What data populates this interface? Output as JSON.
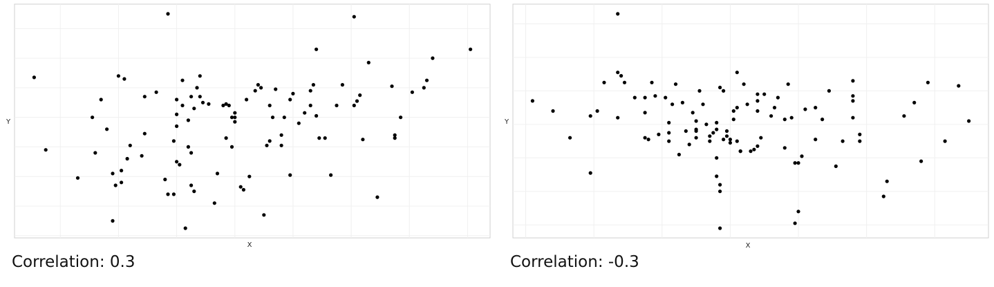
{
  "chart_data": [
    {
      "type": "scatter",
      "xlabel": "X",
      "ylabel": "Y",
      "caption": "Correlation: 0.3",
      "grid": true,
      "points": [
        [
          -2.45,
          1.35
        ],
        [
          -2.25,
          -1.1
        ],
        [
          -1.7,
          -2.05
        ],
        [
          -1.45,
          0.0
        ],
        [
          -1.4,
          -1.2
        ],
        [
          -1.3,
          0.6
        ],
        [
          -1.2,
          -0.4
        ],
        [
          -1.1,
          -3.5
        ],
        [
          -1.1,
          -1.9
        ],
        [
          -1.0,
          1.4
        ],
        [
          -1.05,
          -2.3
        ],
        [
          -0.95,
          -2.2
        ],
        [
          -0.95,
          -1.8
        ],
        [
          -0.9,
          1.3
        ],
        [
          -0.85,
          -1.4
        ],
        [
          -0.8,
          -0.95
        ],
        [
          -0.6,
          -1.3
        ],
        [
          -0.55,
          0.7
        ],
        [
          -0.55,
          -0.55
        ],
        [
          -0.35,
          0.85
        ],
        [
          -0.2,
          -2.1
        ],
        [
          -0.15,
          3.5
        ],
        [
          -0.15,
          -2.6
        ],
        [
          -0.05,
          -2.6
        ],
        [
          -0.05,
          -0.8
        ],
        [
          0.0,
          0.6
        ],
        [
          0.0,
          0.1
        ],
        [
          0.0,
          -0.3
        ],
        [
          0.0,
          -1.5
        ],
        [
          0.05,
          -1.6
        ],
        [
          0.1,
          0.4
        ],
        [
          0.1,
          1.25
        ],
        [
          0.15,
          -3.75
        ],
        [
          0.2,
          -0.1
        ],
        [
          0.2,
          -1.0
        ],
        [
          0.25,
          -1.2
        ],
        [
          0.25,
          0.7
        ],
        [
          0.25,
          -2.3
        ],
        [
          0.3,
          0.3
        ],
        [
          0.3,
          -2.5
        ],
        [
          0.35,
          1.0
        ],
        [
          0.4,
          0.7
        ],
        [
          0.4,
          1.4
        ],
        [
          0.45,
          0.5
        ],
        [
          0.55,
          0.45
        ],
        [
          0.65,
          -2.9
        ],
        [
          0.7,
          -1.9
        ],
        [
          0.8,
          0.4
        ],
        [
          0.85,
          -0.7
        ],
        [
          0.85,
          0.45
        ],
        [
          0.9,
          0.4
        ],
        [
          0.95,
          0.0
        ],
        [
          0.95,
          -1.0
        ],
        [
          1.0,
          -0.15
        ],
        [
          1.0,
          0.15
        ],
        [
          1.0,
          0.0
        ],
        [
          1.1,
          -2.35
        ],
        [
          1.15,
          -2.45
        ],
        [
          1.2,
          0.6
        ],
        [
          1.25,
          -2.0
        ],
        [
          1.35,
          0.9
        ],
        [
          1.4,
          1.1
        ],
        [
          1.45,
          1.0
        ],
        [
          1.5,
          -3.3
        ],
        [
          1.55,
          -0.95
        ],
        [
          1.6,
          0.4
        ],
        [
          1.6,
          -0.8
        ],
        [
          1.65,
          0.0
        ],
        [
          1.7,
          0.95
        ],
        [
          1.8,
          -0.6
        ],
        [
          1.8,
          -0.95
        ],
        [
          1.85,
          0.0
        ],
        [
          1.95,
          0.6
        ],
        [
          1.95,
          -1.95
        ],
        [
          2.0,
          0.8
        ],
        [
          2.1,
          -0.2
        ],
        [
          2.2,
          0.15
        ],
        [
          2.3,
          0.9
        ],
        [
          2.3,
          0.4
        ],
        [
          2.35,
          1.1
        ],
        [
          2.4,
          2.3
        ],
        [
          2.4,
          0.05
        ],
        [
          2.45,
          -0.7
        ],
        [
          2.55,
          -0.7
        ],
        [
          2.65,
          -1.95
        ],
        [
          2.75,
          0.4
        ],
        [
          2.85,
          1.1
        ],
        [
          3.05,
          3.4
        ],
        [
          3.05,
          0.4
        ],
        [
          3.1,
          0.55
        ],
        [
          3.15,
          0.75
        ],
        [
          3.2,
          -0.75
        ],
        [
          3.3,
          1.85
        ],
        [
          3.45,
          -2.7
        ],
        [
          3.7,
          1.05
        ],
        [
          3.75,
          -0.6
        ],
        [
          3.75,
          -0.7
        ],
        [
          3.85,
          0.0
        ],
        [
          4.05,
          0.85
        ],
        [
          4.25,
          1.0
        ],
        [
          4.3,
          1.25
        ],
        [
          4.4,
          2.0
        ],
        [
          5.05,
          2.3
        ]
      ]
    },
    {
      "type": "scatter",
      "xlabel": "X",
      "ylabel": "Y",
      "caption": "Correlation: -0.3",
      "grid": true,
      "points": [
        [
          -2.9,
          0.7
        ],
        [
          -2.6,
          0.4
        ],
        [
          -2.35,
          -0.4
        ],
        [
          -2.05,
          -1.45
        ],
        [
          -2.05,
          0.25
        ],
        [
          -1.95,
          0.4
        ],
        [
          -1.85,
          1.25
        ],
        [
          -1.65,
          3.3
        ],
        [
          -1.65,
          0.2
        ],
        [
          -1.65,
          1.55
        ],
        [
          -1.6,
          1.45
        ],
        [
          -1.55,
          1.25
        ],
        [
          -1.4,
          0.8
        ],
        [
          -1.25,
          0.35
        ],
        [
          -1.25,
          -0.4
        ],
        [
          -1.25,
          0.8
        ],
        [
          -1.2,
          -0.45
        ],
        [
          -1.15,
          1.25
        ],
        [
          -1.1,
          0.85
        ],
        [
          -1.05,
          -0.3
        ],
        [
          -0.95,
          0.8
        ],
        [
          -0.9,
          -0.25
        ],
        [
          -0.9,
          -0.5
        ],
        [
          -0.9,
          0.05
        ],
        [
          -0.85,
          0.6
        ],
        [
          -0.8,
          1.2
        ],
        [
          -0.75,
          -0.9
        ],
        [
          -0.7,
          0.65
        ],
        [
          -0.65,
          -0.2
        ],
        [
          -0.6,
          -0.6
        ],
        [
          -0.55,
          0.35
        ],
        [
          -0.5,
          0.1
        ],
        [
          -0.5,
          -0.15
        ],
        [
          -0.5,
          -0.2
        ],
        [
          -0.5,
          -0.4
        ],
        [
          -0.45,
          1.0
        ],
        [
          -0.4,
          0.6
        ],
        [
          -0.35,
          0.0
        ],
        [
          -0.3,
          -0.5
        ],
        [
          -0.3,
          -0.35
        ],
        [
          -0.25,
          -0.25
        ],
        [
          -0.2,
          -1.0
        ],
        [
          -0.2,
          -0.15
        ],
        [
          -0.2,
          0.05
        ],
        [
          -0.2,
          -1.55
        ],
        [
          -0.15,
          -1.8
        ],
        [
          -0.15,
          -2.0
        ],
        [
          -0.15,
          -3.1
        ],
        [
          -0.15,
          1.1
        ],
        [
          -0.1,
          1.0
        ],
        [
          -0.1,
          -0.45
        ],
        [
          -0.05,
          -0.2
        ],
        [
          -0.05,
          -0.35
        ],
        [
          0.0,
          -0.45
        ],
        [
          0.0,
          -0.55
        ],
        [
          0.05,
          0.15
        ],
        [
          0.05,
          0.4
        ],
        [
          0.1,
          1.55
        ],
        [
          0.1,
          0.5
        ],
        [
          0.1,
          -0.5
        ],
        [
          0.15,
          -0.8
        ],
        [
          0.15,
          -0.8
        ],
        [
          0.2,
          1.2
        ],
        [
          0.25,
          0.6
        ],
        [
          0.3,
          -0.8
        ],
        [
          0.35,
          -0.75
        ],
        [
          0.4,
          0.4
        ],
        [
          0.4,
          0.9
        ],
        [
          0.4,
          0.7
        ],
        [
          0.4,
          -0.65
        ],
        [
          0.45,
          -0.4
        ],
        [
          0.5,
          0.9
        ],
        [
          0.6,
          0.25
        ],
        [
          0.65,
          0.5
        ],
        [
          0.7,
          0.8
        ],
        [
          0.8,
          0.15
        ],
        [
          0.8,
          -0.7
        ],
        [
          0.85,
          1.2
        ],
        [
          0.9,
          0.2
        ],
        [
          0.95,
          -1.15
        ],
        [
          0.95,
          -2.95
        ],
        [
          1.0,
          -2.6
        ],
        [
          1.0,
          -1.15
        ],
        [
          1.05,
          -0.95
        ],
        [
          1.1,
          0.45
        ],
        [
          1.25,
          -0.45
        ],
        [
          1.25,
          0.5
        ],
        [
          1.35,
          0.15
        ],
        [
          1.45,
          1.0
        ],
        [
          1.55,
          -1.25
        ],
        [
          1.65,
          -0.5
        ],
        [
          1.8,
          0.7
        ],
        [
          1.8,
          1.3
        ],
        [
          1.8,
          0.85
        ],
        [
          1.8,
          0.2
        ],
        [
          1.9,
          -0.3
        ],
        [
          1.9,
          -0.5
        ],
        [
          2.25,
          -2.15
        ],
        [
          2.3,
          -1.7
        ],
        [
          2.55,
          0.25
        ],
        [
          2.7,
          0.65
        ],
        [
          2.8,
          -1.1
        ],
        [
          2.9,
          1.25
        ],
        [
          3.15,
          -0.5
        ],
        [
          3.35,
          1.15
        ],
        [
          3.5,
          0.1
        ]
      ]
    }
  ]
}
